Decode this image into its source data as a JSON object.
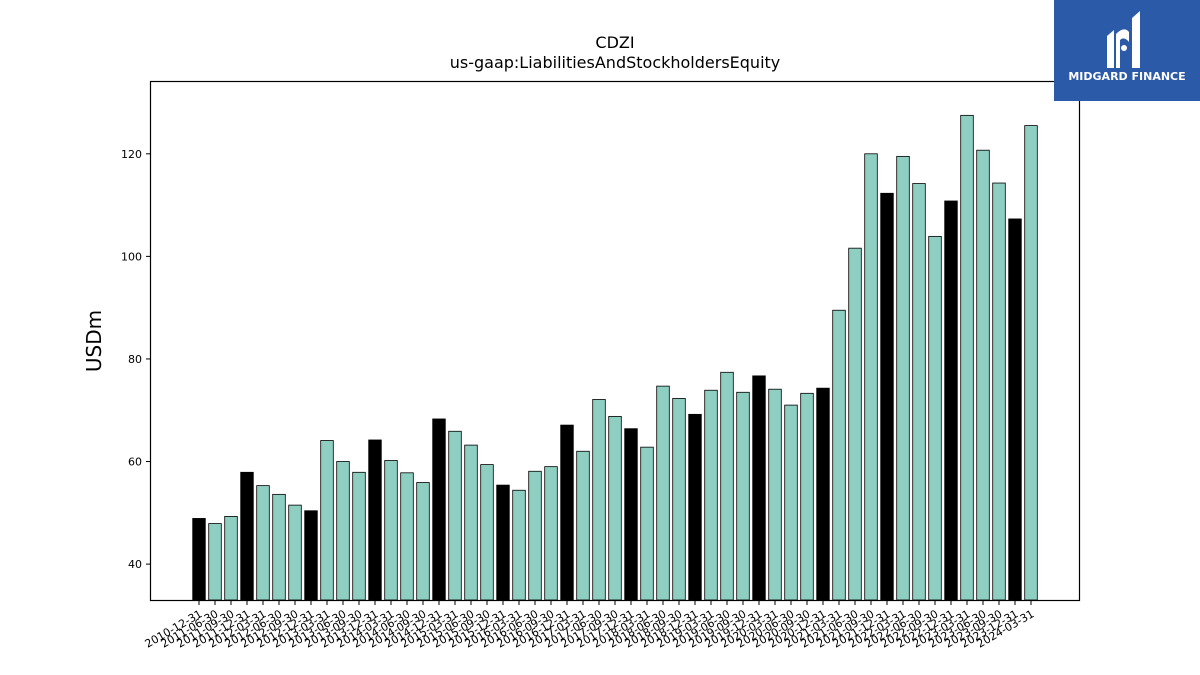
{
  "brand": {
    "name": "MIDGARD FINANCE",
    "bg_color": "#2b5aa8"
  },
  "chart_data": {
    "type": "bar",
    "title": "CDZI",
    "subtitle": "us-gaap:LiabilitiesAndStockholdersEquity",
    "xlabel": "",
    "ylabel": "USDm",
    "ylim": [
      33,
      134
    ],
    "yticks": [
      40,
      60,
      80,
      100,
      120
    ],
    "grid": false,
    "colors": {
      "annual": "#000000",
      "quarterly": "#8ecfc1"
    },
    "categories": [
      "2010-12-31",
      "2011-06-30",
      "2011-09-30",
      "2011-12-31",
      "2012-03-31",
      "2012-06-30",
      "2012-09-30",
      "2012-12-31",
      "2013-03-31",
      "2013-06-30",
      "2013-09-30",
      "2013-12-31",
      "2014-03-31",
      "2014-06-30",
      "2014-09-30",
      "2014-12-31",
      "2015-03-31",
      "2015-06-30",
      "2015-09-30",
      "2015-12-31",
      "2016-03-31",
      "2016-06-30",
      "2016-09-30",
      "2016-12-31",
      "2017-03-31",
      "2017-06-30",
      "2017-09-30",
      "2017-12-31",
      "2018-03-31",
      "2018-06-30",
      "2018-09-30",
      "2018-12-31",
      "2019-03-31",
      "2019-06-30",
      "2019-09-30",
      "2019-12-31",
      "2020-03-31",
      "2020-06-30",
      "2020-09-30",
      "2020-12-31",
      "2021-03-31",
      "2021-06-30",
      "2021-09-30",
      "2021-12-31",
      "2022-03-31",
      "2022-06-30",
      "2022-09-30",
      "2022-12-31",
      "2023-03-31",
      "2023-06-30",
      "2023-09-30",
      "2023-12-31",
      "2024-03-31"
    ],
    "values": [
      48.9,
      47.9,
      49.3,
      57.9,
      55.3,
      53.6,
      51.5,
      50.4,
      64.1,
      60.0,
      57.9,
      64.2,
      60.2,
      57.8,
      55.9,
      68.3,
      65.9,
      63.2,
      59.4,
      55.4,
      54.4,
      58.1,
      59.0,
      67.1,
      62.0,
      72.1,
      68.8,
      66.4,
      62.8,
      74.7,
      72.3,
      69.2,
      73.9,
      77.4,
      73.5,
      76.7,
      74.1,
      71.0,
      73.3,
      74.3,
      89.5,
      101.6,
      120.0,
      112.3,
      119.5,
      114.2,
      103.9,
      110.8,
      127.5,
      120.7,
      114.3,
      107.3,
      125.5
    ],
    "annual_flags": [
      1,
      0,
      0,
      1,
      0,
      0,
      0,
      1,
      0,
      0,
      0,
      1,
      0,
      0,
      0,
      1,
      0,
      0,
      0,
      1,
      0,
      0,
      0,
      1,
      0,
      0,
      0,
      1,
      0,
      0,
      0,
      1,
      0,
      0,
      0,
      1,
      0,
      0,
      0,
      1,
      0,
      0,
      0,
      1,
      0,
      0,
      0,
      1,
      0,
      0,
      0,
      1,
      0
    ]
  }
}
